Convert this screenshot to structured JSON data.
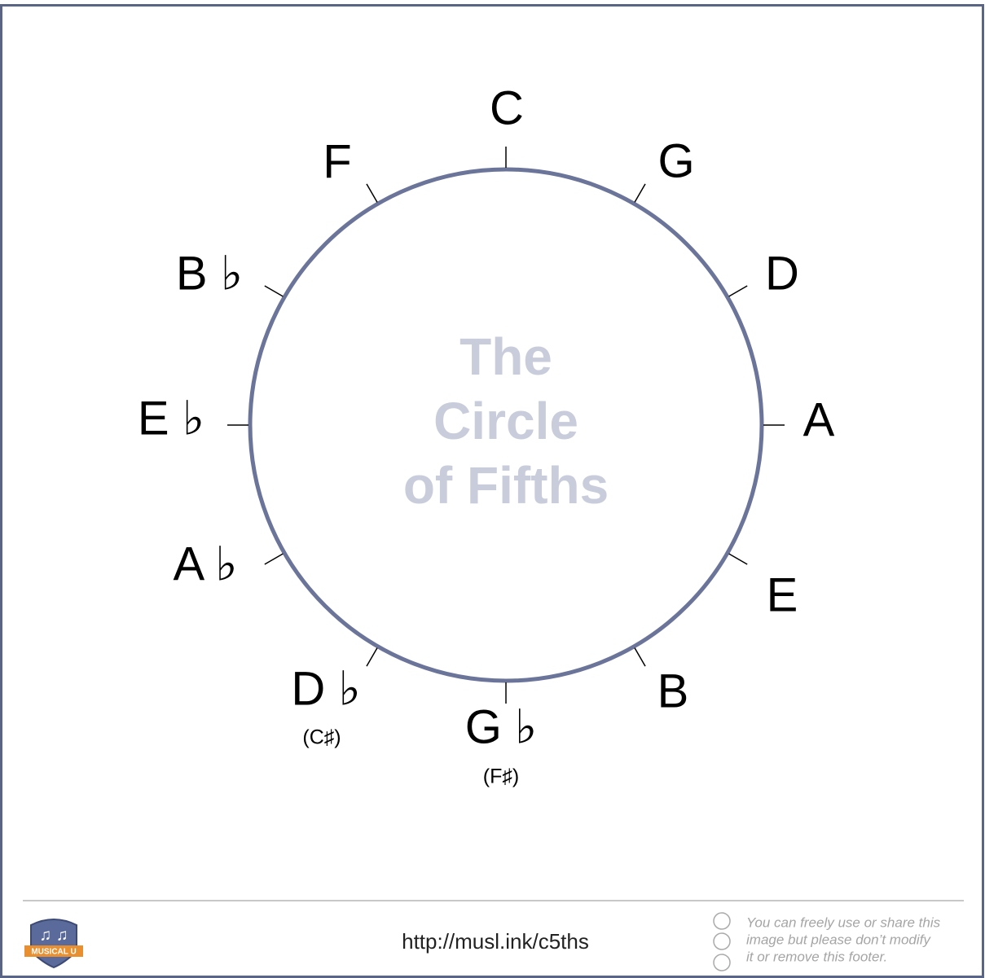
{
  "title": {
    "lines": [
      "The",
      "Circle",
      "of Fifths"
    ]
  },
  "keys": [
    {
      "label": "C"
    },
    {
      "label": "G"
    },
    {
      "label": "D"
    },
    {
      "label": "A"
    },
    {
      "label": "E"
    },
    {
      "label": "B"
    },
    {
      "label": "G ♭",
      "alt": "(F♯)"
    },
    {
      "label": "D ♭",
      "alt": "(C♯)"
    },
    {
      "label": "A ♭"
    },
    {
      "label": "E ♭"
    },
    {
      "label": "B ♭"
    },
    {
      "label": "F"
    }
  ],
  "footer": {
    "logo": "MUSICAL U",
    "url": "http://musl.ink/c5ths",
    "license": [
      "You can freely use or share this",
      "image but please don’t modify",
      "it or remove this footer."
    ]
  }
}
